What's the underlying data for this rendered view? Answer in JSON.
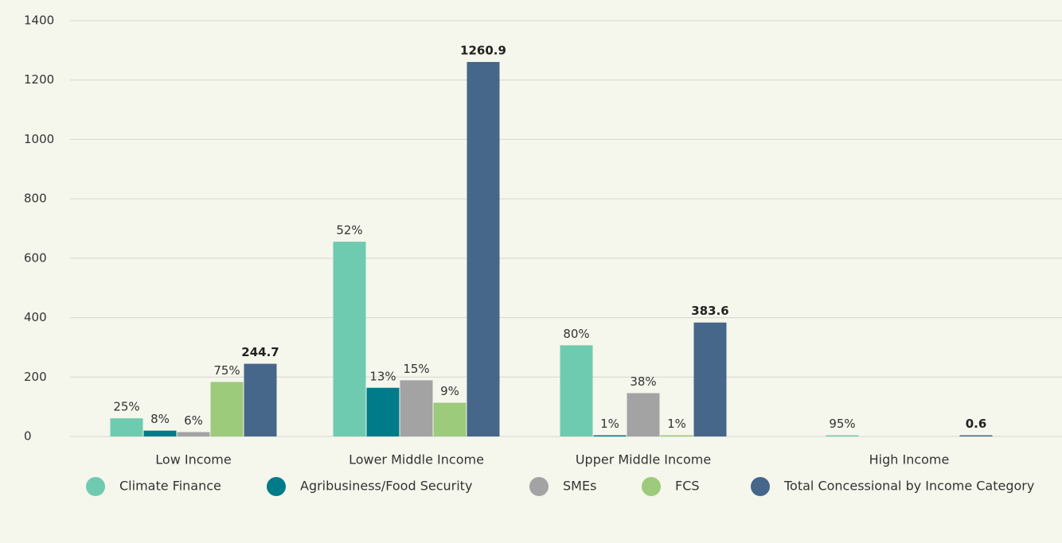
{
  "chart_data": {
    "type": "bar",
    "categories": [
      "Low Income",
      "Lower Middle Income",
      "Upper Middle Income",
      "High Income"
    ],
    "series": [
      {
        "name": "Climate Finance",
        "color": "#6fcbb0",
        "values": [
          61.2,
          655.7,
          306.9,
          0.6
        ],
        "share_labels": [
          "25%",
          "52%",
          "80%",
          "95%"
        ]
      },
      {
        "name": "Agribusiness/Food Security",
        "color": "#007b89",
        "values": [
          19.6,
          163.9,
          3.8,
          null
        ],
        "share_labels": [
          "8%",
          "13%",
          "1%",
          null
        ]
      },
      {
        "name": "SMEs",
        "color": "#a3a3a3",
        "values": [
          14.7,
          189.1,
          145.8,
          null
        ],
        "share_labels": [
          "6%",
          "15%",
          "38%",
          null
        ]
      },
      {
        "name": "FCS",
        "color": "#9ccb7c",
        "values": [
          183.5,
          113.5,
          3.8,
          null
        ],
        "share_labels": [
          "75%",
          "9%",
          "1%",
          null
        ]
      },
      {
        "name": "Total Concessional by Income Category",
        "color": "#46668a",
        "values": [
          244.7,
          1260.9,
          383.6,
          0.6
        ]
      }
    ],
    "ylim": [
      0,
      1400
    ],
    "yticks": [
      0,
      200,
      400,
      600,
      800,
      1000,
      1200,
      1400
    ],
    "grid": true
  }
}
